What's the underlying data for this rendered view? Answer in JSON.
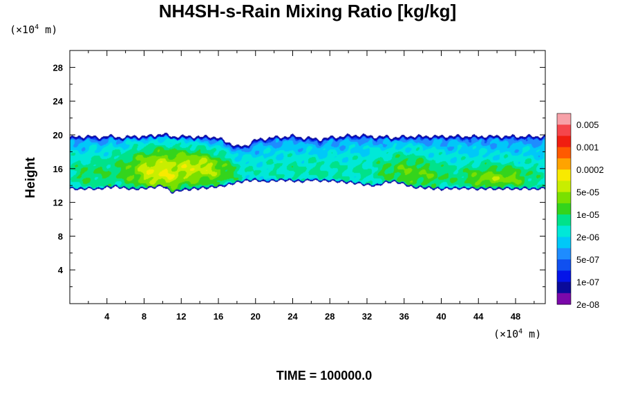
{
  "chart_data": {
    "type": "heatmap",
    "title": "NH4SH-s-Rain Mixing Ratio [kg/kg]",
    "ylabel": "Height",
    "x_unit": {
      "prefix": "(×10",
      "exp": "4",
      "suffix": " m)"
    },
    "y_unit": {
      "prefix": "(×10",
      "exp": "4",
      "suffix": " m)"
    },
    "xlim": [
      0,
      51.2
    ],
    "ylim": [
      0,
      30
    ],
    "x_ticks": [
      4,
      8,
      12,
      16,
      20,
      24,
      28,
      32,
      36,
      40,
      44,
      48
    ],
    "y_ticks": [
      4,
      8,
      12,
      16,
      20,
      24,
      28
    ],
    "x_minor_step": 2,
    "y_minor_step": 2,
    "colorbar": {
      "colors": [
        "#f7a1a8",
        "#f5464c",
        "#f01e10",
        "#ff5a00",
        "#ffa300",
        "#f8ea00",
        "#c8ee00",
        "#7ae000",
        "#34d41c",
        "#00e28a",
        "#00e8d8",
        "#00c8f8",
        "#1e8cff",
        "#1050f0",
        "#0414e8",
        "#0a0a9a",
        "#7a08aa"
      ],
      "labels": [
        "0.005",
        "0.001",
        "0.0002",
        "5e-05",
        "1e-05",
        "2e-06",
        "5e-07",
        "1e-07",
        "2e-08"
      ]
    },
    "profile": {
      "x": [
        0,
        1,
        2,
        3,
        4,
        5,
        6,
        7,
        8,
        9,
        10,
        11,
        12,
        13,
        14,
        15,
        16,
        17,
        18,
        19,
        20,
        21,
        22,
        23,
        24,
        25,
        26,
        27,
        28,
        29,
        30,
        31,
        32,
        33,
        34,
        35,
        36,
        37,
        38,
        39,
        40,
        41,
        42,
        43,
        44,
        45,
        46,
        47,
        48,
        49,
        50,
        51.2
      ],
      "top": [
        19.7,
        19.8,
        19.9,
        19.7,
        19.9,
        19.8,
        19.7,
        19.9,
        19.8,
        20.0,
        20.1,
        19.9,
        19.8,
        19.9,
        19.7,
        19.9,
        19.6,
        19.2,
        18.6,
        18.8,
        19.4,
        19.6,
        19.7,
        19.8,
        19.9,
        19.7,
        19.6,
        19.5,
        19.7,
        19.8,
        19.9,
        20.0,
        19.9,
        19.8,
        19.8,
        19.7,
        19.8,
        19.9,
        19.8,
        19.9,
        19.8,
        19.9,
        19.8,
        19.9,
        19.8,
        19.9,
        19.8,
        19.9,
        19.8,
        19.9,
        19.8,
        19.9
      ],
      "bottom": [
        13.6,
        13.5,
        13.6,
        13.5,
        13.7,
        13.8,
        13.6,
        13.5,
        13.6,
        13.7,
        13.9,
        13.1,
        13.4,
        13.5,
        13.6,
        13.7,
        13.8,
        14.0,
        14.3,
        14.5,
        14.6,
        14.4,
        14.5,
        14.6,
        14.5,
        14.4,
        14.6,
        14.5,
        14.5,
        14.4,
        14.3,
        14.2,
        14.0,
        13.9,
        14.3,
        14.4,
        14.1,
        13.7,
        13.7,
        13.6,
        13.5,
        13.6,
        13.6,
        13.6,
        13.5,
        13.6,
        13.5,
        13.6,
        13.5,
        13.6,
        13.5,
        13.6
      ]
    },
    "blobs": [
      {
        "x": 10.0,
        "y": 16.0,
        "rx": 5.0,
        "ry": 3.2,
        "amp": 12.5
      },
      {
        "x": 8.5,
        "y": 15.6,
        "rx": 2.0,
        "ry": 1.5,
        "amp": 3.5
      },
      {
        "x": 10.5,
        "y": 14.8,
        "rx": 1.4,
        "ry": 0.9,
        "amp": 3.0
      },
      {
        "x": 14.5,
        "y": 16.4,
        "rx": 2.8,
        "ry": 1.7,
        "amp": 7.5
      },
      {
        "x": 16.5,
        "y": 15.2,
        "rx": 2.5,
        "ry": 1.5,
        "amp": 4.0
      },
      {
        "x": 1.8,
        "y": 15.3,
        "rx": 2.8,
        "ry": 2.0,
        "amp": 5.0
      },
      {
        "x": 36.0,
        "y": 15.8,
        "rx": 3.2,
        "ry": 2.4,
        "amp": 8.0
      },
      {
        "x": 39.0,
        "y": 15.0,
        "rx": 2.0,
        "ry": 1.5,
        "amp": 4.0
      },
      {
        "x": 46.0,
        "y": 15.0,
        "rx": 4.6,
        "ry": 1.7,
        "amp": 9.5
      },
      {
        "x": 44.5,
        "y": 14.7,
        "rx": 1.5,
        "ry": 0.7,
        "amp": 3.0
      },
      {
        "x": 47.5,
        "y": 14.7,
        "rx": 1.5,
        "ry": 0.6,
        "amp": 2.5
      },
      {
        "x": 28.0,
        "y": 15.6,
        "rx": 5.0,
        "ry": 1.8,
        "amp": 3.0
      },
      {
        "x": 23.5,
        "y": 16.2,
        "rx": 3.5,
        "ry": 1.5,
        "amp": 2.0
      }
    ]
  },
  "time_label": "TIME = 100000.0"
}
